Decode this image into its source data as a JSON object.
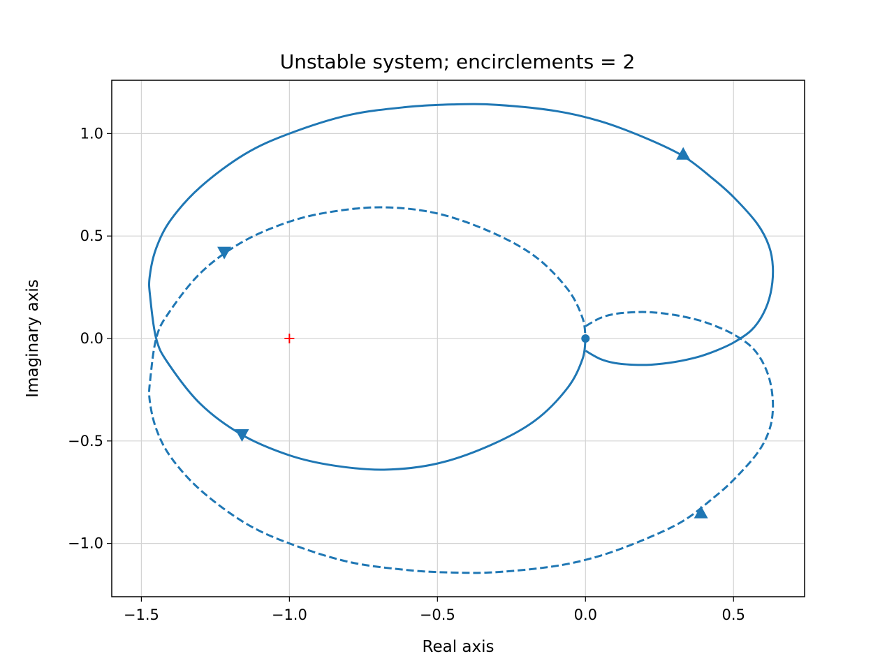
{
  "chart_data": {
    "type": "line",
    "title": "Unstable system; encirclements = 2",
    "xlabel": "Real axis",
    "ylabel": "Imaginary axis",
    "xlim": [
      -1.6,
      0.74
    ],
    "ylim": [
      -1.26,
      1.26
    ],
    "xticks": [
      -1.5,
      -1.0,
      -0.5,
      0.0,
      0.5
    ],
    "xtick_labels": [
      "−1.5",
      "−1.0",
      "−0.5",
      "0.0",
      "0.5"
    ],
    "yticks": [
      -1.0,
      -0.5,
      0.0,
      0.5,
      1.0
    ],
    "ytick_labels": [
      "−1.0",
      "−0.5",
      "0.0",
      "0.5",
      "1.0"
    ],
    "grid": true,
    "colors": {
      "curve": "#1f77b4",
      "critical_point": "#ff0000",
      "grid": "#d3d3d3"
    },
    "series": [
      {
        "style": "solid",
        "x": [
          0.0,
          0.05,
          0.1,
          0.16,
          0.22,
          0.3,
          0.38,
          0.44,
          0.5,
          0.56,
          0.6,
          0.625,
          0.633,
          0.62,
          0.58,
          0.5,
          0.43,
          0.33,
          0.2,
          0.05,
          -0.1,
          -0.3,
          -0.45,
          -0.6,
          -0.8,
          -1.0,
          -1.15,
          -1.3,
          -1.4,
          -1.45,
          -1.472,
          -1.47,
          -1.45,
          -1.41,
          -1.3,
          -1.16,
          -1.0,
          -0.85,
          -0.68,
          -0.5,
          -0.32,
          -0.17,
          -0.06,
          -0.01,
          0.0
        ],
        "y": [
          -0.06,
          -0.1,
          -0.12,
          -0.128,
          -0.128,
          -0.115,
          -0.09,
          -0.06,
          -0.02,
          0.04,
          0.12,
          0.22,
          0.34,
          0.45,
          0.56,
          0.69,
          0.78,
          0.89,
          0.98,
          1.06,
          1.11,
          1.14,
          1.142,
          1.13,
          1.09,
          1.0,
          0.9,
          0.74,
          0.58,
          0.44,
          0.3,
          0.2,
          0.0,
          -0.12,
          -0.32,
          -0.47,
          -0.57,
          -0.62,
          -0.64,
          -0.61,
          -0.52,
          -0.4,
          -0.24,
          -0.1,
          0.0
        ]
      },
      {
        "style": "dashed",
        "x": [
          0.0,
          0.05,
          0.1,
          0.16,
          0.22,
          0.3,
          0.38,
          0.44,
          0.5,
          0.56,
          0.6,
          0.625,
          0.633,
          0.62,
          0.58,
          0.5,
          0.43,
          0.33,
          0.2,
          0.05,
          -0.1,
          -0.3,
          -0.45,
          -0.6,
          -0.8,
          -1.0,
          -1.15,
          -1.3,
          -1.4,
          -1.45,
          -1.472,
          -1.47,
          -1.45,
          -1.41,
          -1.3,
          -1.16,
          -1.0,
          -0.85,
          -0.68,
          -0.5,
          -0.32,
          -0.17,
          -0.06,
          -0.01,
          0.0
        ],
        "y": [
          0.06,
          0.1,
          0.12,
          0.128,
          0.128,
          0.115,
          0.09,
          0.06,
          0.02,
          -0.04,
          -0.12,
          -0.22,
          -0.34,
          -0.45,
          -0.56,
          -0.69,
          -0.78,
          -0.89,
          -0.98,
          -1.06,
          -1.11,
          -1.14,
          -1.142,
          -1.13,
          -1.09,
          -1.0,
          -0.9,
          -0.74,
          -0.58,
          -0.44,
          -0.3,
          -0.2,
          0.0,
          0.12,
          0.32,
          0.47,
          0.57,
          0.62,
          0.64,
          0.61,
          0.52,
          0.4,
          0.24,
          0.1,
          0.0
        ]
      }
    ],
    "arrows": [
      {
        "x": 0.33,
        "y": 0.9,
        "direction": "up"
      },
      {
        "x": -1.16,
        "y": -0.47,
        "direction": "down"
      },
      {
        "x": 0.39,
        "y": -0.85,
        "direction": "up"
      },
      {
        "x": -1.22,
        "y": 0.42,
        "direction": "down"
      }
    ],
    "critical_point": {
      "x": -1.0,
      "y": 0.0,
      "marker": "+"
    },
    "origin_marker": {
      "x": 0.0,
      "y": 0.0,
      "marker": "dot"
    }
  }
}
